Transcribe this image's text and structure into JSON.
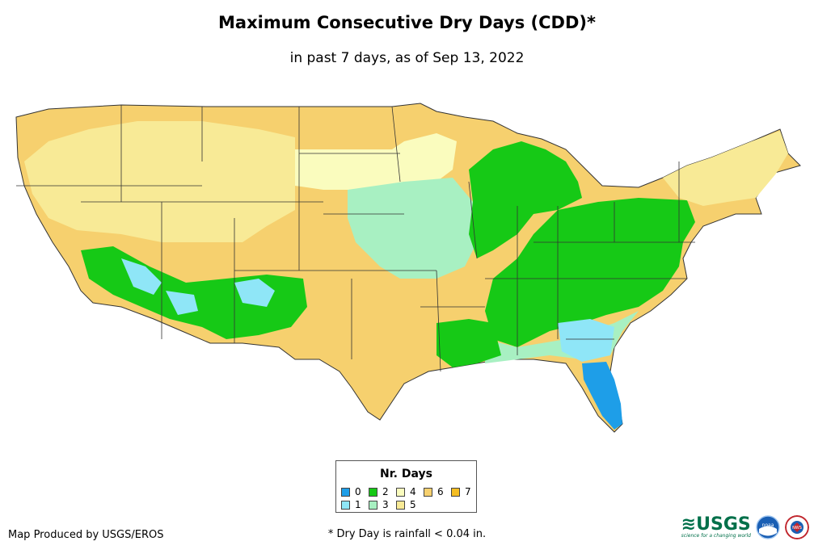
{
  "title": "Maximum Consecutive Dry Days (CDD)*",
  "subtitle": "in past 7 days, as of Sep 13, 2022",
  "legend": {
    "title": "Nr. Days",
    "items": [
      {
        "label": "0",
        "color": "#1e9ee8"
      },
      {
        "label": "1",
        "color": "#8fe6f7"
      },
      {
        "label": "2",
        "color": "#16c916"
      },
      {
        "label": "3",
        "color": "#a8f0c2"
      },
      {
        "label": "4",
        "color": "#fafcbe"
      },
      {
        "label": "5",
        "color": "#f8ea96"
      },
      {
        "label": "6",
        "color": "#f6d06e"
      },
      {
        "label": "7",
        "color": "#f4bd22"
      }
    ]
  },
  "credit": "Map Produced by USGS/EROS",
  "footnote": "* Dry Day is rainfall < 0.04 in.",
  "logos": {
    "usgs_text": "≋USGS",
    "usgs_tagline": "science for a changing world",
    "noaa_label": "noaa",
    "nws_label": "NWS"
  }
}
